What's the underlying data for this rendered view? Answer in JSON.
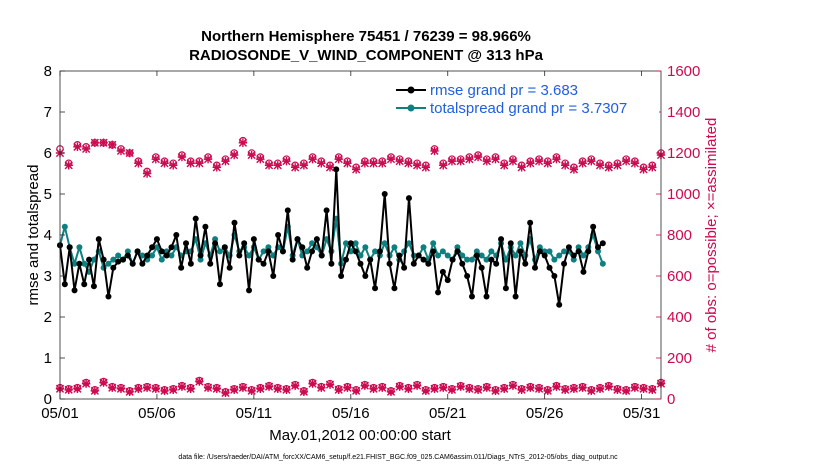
{
  "chart_data": {
    "type": "line",
    "title_line1": "Northern Hemisphere 75451 / 76239 = 98.966%",
    "title_line2": "RADIOSONDE_V_WIND_COMPONENT @ 313 hPa",
    "xlabel": "May.01,2012 00:00:00 start",
    "ylabel": "rmse and totalspread",
    "ylabel_right": "# of obs: o=possible; ×=assimilated",
    "footnote": "data file: /Users/raeder/DAI/ATM_forcXX/CAM6_setup/f.e21.FHIST_BGC.f09_025.CAM6assim.011/Diags_NTrS_2012-05/obs_diag_output.nc",
    "x_ticks": [
      {
        "value": 1,
        "label": "05/01"
      },
      {
        "value": 6,
        "label": "05/06"
      },
      {
        "value": 11,
        "label": "05/11"
      },
      {
        "value": 16,
        "label": "05/16"
      },
      {
        "value": 21,
        "label": "05/21"
      },
      {
        "value": 26,
        "label": "05/26"
      },
      {
        "value": 31,
        "label": "05/31"
      }
    ],
    "xlim": [
      1,
      32
    ],
    "ylim": [
      0,
      8
    ],
    "y_ticks": [
      0,
      1,
      2,
      3,
      4,
      5,
      6,
      7,
      8
    ],
    "y2lim": [
      0,
      1600
    ],
    "y2_ticks": [
      0,
      200,
      400,
      600,
      800,
      1000,
      1200,
      1400,
      1600
    ],
    "legend": [
      "rmse grand pr = 3.683",
      "totalspread grand pr = 3.7307"
    ],
    "colors": {
      "rmse": "#000000",
      "spread": "#0f8080",
      "obs": "#cc0a50",
      "legend_text": "#1f5fe0"
    },
    "x_start": 1.0,
    "x_step": 0.25,
    "series": [
      {
        "name": "rmse",
        "values": [
          3.75,
          2.8,
          3.7,
          2.65,
          3.3,
          2.8,
          3.4,
          2.75,
          3.9,
          3.4,
          2.5,
          3.2,
          3.35,
          3.4,
          3.5,
          3.3,
          3.6,
          3.3,
          3.5,
          3.7,
          3.9,
          3.6,
          3.5,
          3.7,
          4.0,
          3.2,
          3.8,
          3.3,
          4.4,
          3.5,
          4.2,
          3.3,
          3.8,
          2.8,
          3.7,
          3.2,
          4.3,
          3.5,
          3.8,
          2.65,
          3.9,
          3.4,
          3.3,
          3.6,
          3.0,
          4.0,
          3.6,
          4.6,
          3.4,
          3.9,
          3.7,
          3.2,
          3.6,
          3.9,
          3.5,
          4.6,
          3.3,
          5.6,
          3.0,
          3.4,
          3.8,
          3.6,
          3.3,
          3.0,
          3.4,
          2.7,
          3.6,
          5.0,
          3.3,
          2.7,
          3.5,
          3.2,
          4.9,
          3.3,
          3.5,
          3.4,
          3.3,
          3.6,
          2.6,
          3.1,
          2.9,
          3.4,
          3.6,
          3.3,
          3.0,
          2.5,
          3.5,
          3.2,
          2.5,
          3.4,
          3.3,
          3.9,
          2.7,
          3.8,
          2.5,
          3.6,
          3.3,
          4.3,
          3.2,
          3.6,
          3.5,
          3.2,
          3.0,
          2.3,
          3.3,
          3.7,
          3.5,
          3.6,
          3.1,
          3.6,
          4.2,
          3.7,
          3.8
        ]
      },
      {
        "name": "totalspread",
        "values": [
          3.75,
          4.2,
          3.7,
          3.3,
          3.7,
          3.3,
          3.1,
          3.4,
          3.6,
          3.2,
          3.3,
          3.4,
          3.5,
          3.4,
          3.6,
          3.3,
          3.6,
          3.5,
          3.4,
          3.5,
          3.7,
          3.4,
          3.6,
          3.5,
          3.7,
          3.5,
          3.6,
          3.6,
          3.9,
          3.4,
          3.8,
          3.5,
          3.9,
          3.6,
          3.7,
          3.5,
          4.0,
          3.6,
          3.7,
          3.5,
          3.7,
          3.4,
          3.6,
          3.7,
          3.5,
          3.7,
          3.6,
          4.2,
          3.5,
          3.9,
          3.5,
          3.6,
          3.8,
          3.7,
          3.5,
          3.9,
          3.6,
          4.4,
          3.3,
          3.8,
          3.6,
          3.8,
          3.5,
          3.7,
          3.4,
          3.6,
          3.5,
          3.8,
          3.5,
          3.7,
          3.4,
          3.6,
          3.8,
          3.5,
          3.5,
          3.7,
          3.4,
          3.8,
          3.5,
          3.6,
          3.5,
          3.4,
          3.7,
          3.5,
          3.4,
          3.4,
          3.6,
          3.5,
          3.4,
          3.6,
          3.5,
          3.8,
          3.4,
          3.7,
          3.5,
          3.8,
          3.5,
          3.9,
          3.4,
          3.7,
          3.6,
          3.6,
          3.4,
          3.5,
          3.6,
          3.6,
          3.4,
          3.7,
          3.5,
          3.7,
          4.0,
          3.6,
          3.3
        ]
      },
      {
        "name": "obs_possible",
        "axis": "right",
        "values": [
          1220,
          1150,
          1240,
          1230,
          1250,
          1250,
          1240,
          1220,
          1200,
          1160,
          1110,
          1180,
          1160,
          1150,
          1190,
          1160,
          1160,
          1180,
          1140,
          1170,
          1200,
          1260,
          1200,
          1180,
          1150,
          1150,
          1170,
          1140,
          1150,
          1180,
          1160,
          1140,
          1180,
          1160,
          1130,
          1160,
          1160,
          1160,
          1180,
          1170,
          1160,
          1150,
          1140,
          1220,
          1150,
          1170,
          1170,
          1180,
          1190,
          1170,
          1180,
          1150,
          1170,
          1140,
          1160,
          1170,
          1160,
          1180,
          1150,
          1130,
          1160,
          1170,
          1150,
          1140,
          1150,
          1170,
          1160,
          1130,
          1140,
          1200
        ]
      },
      {
        "name": "obs_assimilated",
        "axis": "right",
        "values": [
          1200,
          1140,
          1230,
          1220,
          1250,
          1250,
          1240,
          1210,
          1200,
          1150,
          1100,
          1170,
          1150,
          1140,
          1180,
          1150,
          1150,
          1170,
          1130,
          1160,
          1190,
          1250,
          1190,
          1170,
          1140,
          1140,
          1160,
          1130,
          1140,
          1170,
          1150,
          1130,
          1170,
          1150,
          1120,
          1150,
          1150,
          1150,
          1170,
          1160,
          1150,
          1140,
          1130,
          1210,
          1140,
          1160,
          1160,
          1170,
          1180,
          1160,
          1170,
          1140,
          1160,
          1130,
          1150,
          1160,
          1150,
          1170,
          1140,
          1120,
          1150,
          1160,
          1140,
          1130,
          1140,
          1160,
          1150,
          1120,
          1130,
          1190
        ]
      },
      {
        "name": "rejected_possible",
        "axis": "right",
        "values": [
          55,
          50,
          55,
          80,
          45,
          85,
          60,
          55,
          40,
          55,
          60,
          55,
          45,
          50,
          65,
          55,
          90,
          60,
          55,
          35,
          50,
          60,
          45,
          55,
          65,
          55,
          50,
          70,
          40,
          80,
          60,
          75,
          50,
          60,
          45,
          70,
          55,
          60,
          40,
          65,
          55,
          70,
          45,
          55,
          60,
          50,
          65,
          55,
          50,
          60,
          45,
          55,
          70,
          50,
          60,
          55,
          45,
          65,
          50,
          55,
          60,
          45,
          55,
          65,
          50,
          45,
          60,
          55,
          50,
          80
        ]
      },
      {
        "name": "rejected_assimilated",
        "axis": "right",
        "values": [
          50,
          45,
          50,
          75,
          40,
          80,
          55,
          50,
          35,
          50,
          55,
          50,
          40,
          45,
          60,
          50,
          85,
          55,
          50,
          30,
          45,
          55,
          40,
          50,
          60,
          50,
          45,
          65,
          35,
          75,
          55,
          70,
          45,
          55,
          40,
          65,
          50,
          55,
          35,
          60,
          50,
          65,
          40,
          50,
          55,
          45,
          60,
          50,
          45,
          55,
          40,
          50,
          65,
          45,
          55,
          50,
          40,
          60,
          45,
          50,
          55,
          40,
          50,
          60,
          45,
          40,
          55,
          50,
          45,
          75
        ]
      }
    ]
  }
}
